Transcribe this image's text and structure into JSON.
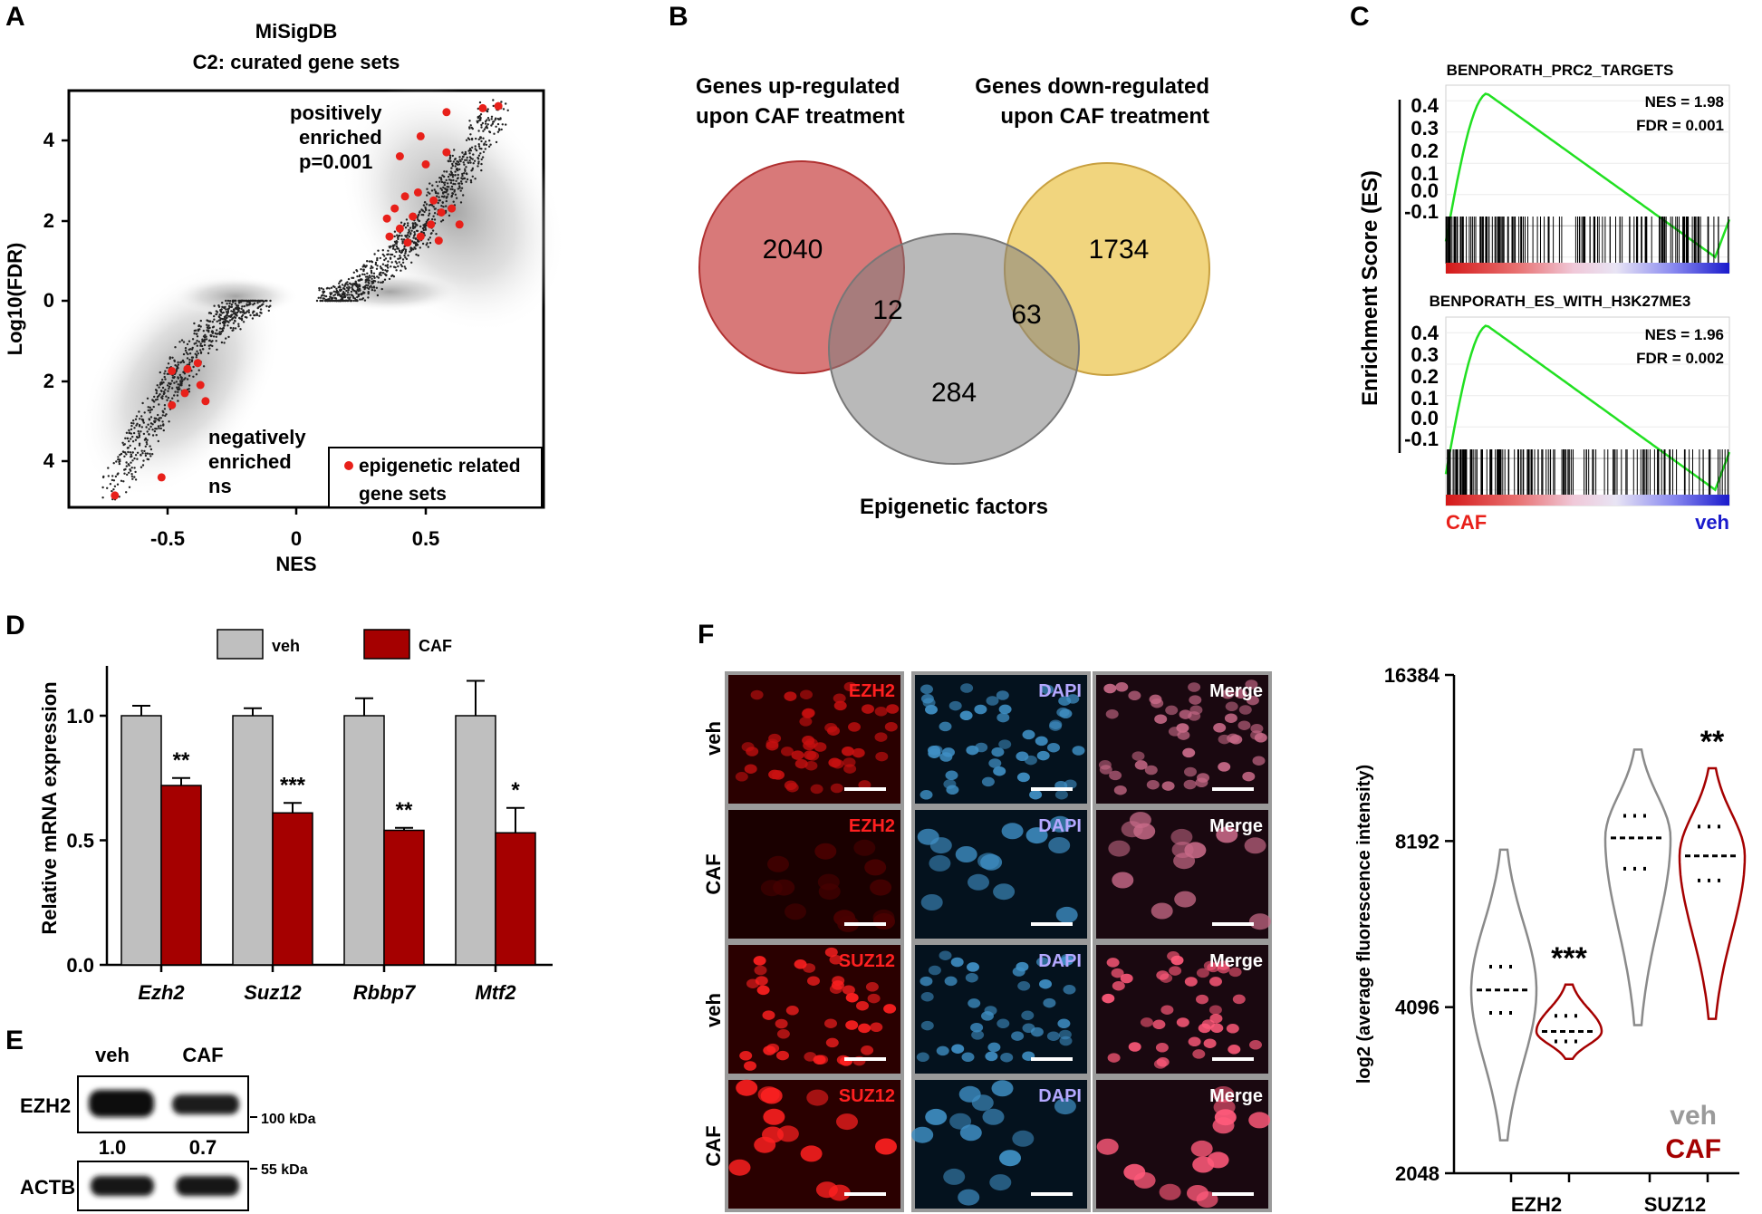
{
  "panel_letters": [
    "A",
    "B",
    "C",
    "D",
    "E",
    "F"
  ],
  "colors": {
    "red_accent": "#e8201a",
    "caf_red": "#a50000",
    "veh_grey": "#bfbfbf",
    "gsea_green": "#22e022",
    "veh_blue": "#1a1acc",
    "venn_up": "#d46a6a",
    "venn_down": "#efd070",
    "venn_epi": "#9a9a9a"
  },
  "panelA": {
    "title_line1": "MiSigDB",
    "title_line2": "C2: curated gene sets",
    "xlabel": "NES",
    "ylabel": "Log10(FDR)",
    "xticks": [
      "-0.5",
      "0",
      "0.5"
    ],
    "yticks": [
      "4",
      "2",
      "0",
      "2",
      "4"
    ],
    "pos_annot": [
      "positively",
      "enriched",
      "p=0.001"
    ],
    "neg_annot": [
      "negatively",
      "enriched",
      "ns"
    ],
    "legend_line1": "epigenetic related",
    "legend_line2": "gene sets"
  },
  "panelB": {
    "set_up_line1": "Genes up-regulated",
    "set_up_line2": "upon CAF treatment",
    "set_down_line1": "Genes down-regulated",
    "set_down_line2": "upon CAF treatment",
    "set_epi": "Epigenetic factors",
    "counts": {
      "up_only": "2040",
      "down_only": "1734",
      "up_epi": "12",
      "down_epi": "63",
      "epi_only": "284"
    }
  },
  "panelC": {
    "ylabel": "Enrichment Score (ES)",
    "left_label": "CAF",
    "right_label": "veh",
    "plots": [
      {
        "title": "BENPORATH_PRC2_TARGETS",
        "nes": "NES = 1.98",
        "fdr": "FDR = 0.001",
        "yticks": [
          "0.4",
          "0.3",
          "0.2",
          "0.1",
          "0.0",
          "-0.1"
        ]
      },
      {
        "title": "BENPORATH_ES_WITH_H3K27ME3",
        "nes": "NES = 1.96",
        "fdr": "FDR = 0.002",
        "yticks": [
          "0.4",
          "0.3",
          "0.2",
          "0.1",
          "0.0",
          "-0.1"
        ]
      }
    ]
  },
  "panelE": {
    "lanes": [
      "veh",
      "CAF"
    ],
    "rows": [
      "EZH2",
      "ACTB"
    ],
    "markers": [
      "100 kDa",
      "55 kDa"
    ],
    "quant": [
      "1.0",
      "0.7"
    ]
  },
  "panelF": {
    "row_labels": [
      "veh",
      "CAF",
      "veh",
      "CAF"
    ],
    "channels": [
      [
        "EZH2",
        "DAPI",
        "Merge"
      ],
      [
        "EZH2",
        "DAPI",
        "Merge"
      ],
      [
        "SUZ12",
        "DAPI",
        "Merge"
      ],
      [
        "SUZ12",
        "DAPI",
        "Merge"
      ]
    ]
  },
  "chart_data": [
    {
      "panel": "D",
      "type": "bar",
      "categories": [
        "Ezh2",
        "Suz12",
        "Rbbp7",
        "Mtf2"
      ],
      "series": [
        {
          "name": "veh",
          "values": [
            1.0,
            1.0,
            1.0,
            1.0
          ],
          "errors": [
            0.04,
            0.03,
            0.07,
            0.14
          ]
        },
        {
          "name": "CAF",
          "values": [
            0.72,
            0.61,
            0.54,
            0.53
          ],
          "errors": [
            0.03,
            0.04,
            0.01,
            0.1
          ]
        }
      ],
      "significance": [
        "**",
        "***",
        "**",
        "*"
      ],
      "ylabel": "Relative mRNA expression",
      "yticks": [
        "0.0",
        "0.5",
        "1.0"
      ],
      "ylim": [
        0,
        1.2
      ],
      "legend": "top"
    },
    {
      "panel": "F",
      "type": "violin",
      "categories": [
        "EZH2",
        "SUZ12"
      ],
      "series": [
        {
          "name": "veh",
          "medians": [
            4400,
            8300
          ],
          "quartiles": [
            [
              4000,
              4850
            ],
            [
              7300,
              9100
            ]
          ],
          "ranges": [
            [
              2350,
              7900
            ],
            [
              3800,
              12000
            ]
          ]
        },
        {
          "name": "CAF",
          "medians": [
            3700,
            7700
          ],
          "quartiles": [
            [
              3550,
              3950
            ],
            [
              6950,
              8700
            ]
          ],
          "ranges": [
            [
              3300,
              4500
            ],
            [
              3900,
              11100
            ]
          ]
        }
      ],
      "significance": [
        "***",
        "**"
      ],
      "ylabel": "log2 (average fluorescence intensity)",
      "yticks": [
        "2048",
        "4096",
        "8192",
        "16384"
      ],
      "ylim": [
        2048,
        16384
      ],
      "scale": "log2",
      "legend": "bottom-right"
    }
  ]
}
